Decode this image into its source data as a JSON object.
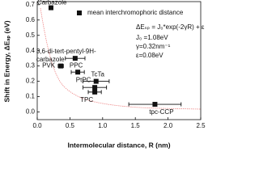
{
  "chart_data": {
    "type": "scatter",
    "x_label": "Intermolecular distance, R (nm)",
    "y_label": "Shift in Energy, ΔEₛₚ (eV)",
    "legend": "mean interchromophoric distance",
    "annotations": [
      "ΔEₛₚ = J₀*exp(-2γR) + ε",
      "J₀ =1.08eV",
      "γ=0.32nm⁻¹",
      "ε=0.08eV"
    ],
    "color": "#111111",
    "points": [
      {
        "label": "Carbazole",
        "x": 0.21,
        "y": 0.68,
        "xerr": 0.03
      },
      {
        "label": "3,6-di-tert-pentyl-9H-carbazole",
        "x": 0.58,
        "y": 0.35,
        "xerr": 0.15
      },
      {
        "label": "PVK",
        "x": 0.36,
        "y": 0.3,
        "xerr": 0.04
      },
      {
        "label": "PPC",
        "x": 0.62,
        "y": 0.26,
        "xerr": 0.1
      },
      {
        "label": "TcTa",
        "x": 0.9,
        "y": 0.2,
        "xerr": 0.2
      },
      {
        "label": "PtPC",
        "x": 0.88,
        "y": 0.16,
        "xerr": 0.18
      },
      {
        "label": "TPC",
        "x": 0.88,
        "y": 0.13,
        "xerr": 0.1
      },
      {
        "label": "tpc-CCP",
        "x": 1.8,
        "y": 0.05,
        "xerr": 0.4
      }
    ],
    "xlim": [
      0,
      2.5
    ],
    "xticks": [
      {
        "value": 0,
        "label": "0.0"
      },
      0.5,
      {
        "value": 1,
        "label": "1.0"
      },
      1.5,
      {
        "value": 2,
        "label": "2.0"
      },
      2.5
    ],
    "ylim": [
      -0.05,
      0.72
    ],
    "yticks": [
      {
        "value": 0,
        "label": "0.0"
      },
      0.1,
      0.2,
      0.3,
      0.4,
      0.5,
      0.6,
      0.7
    ]
  }
}
